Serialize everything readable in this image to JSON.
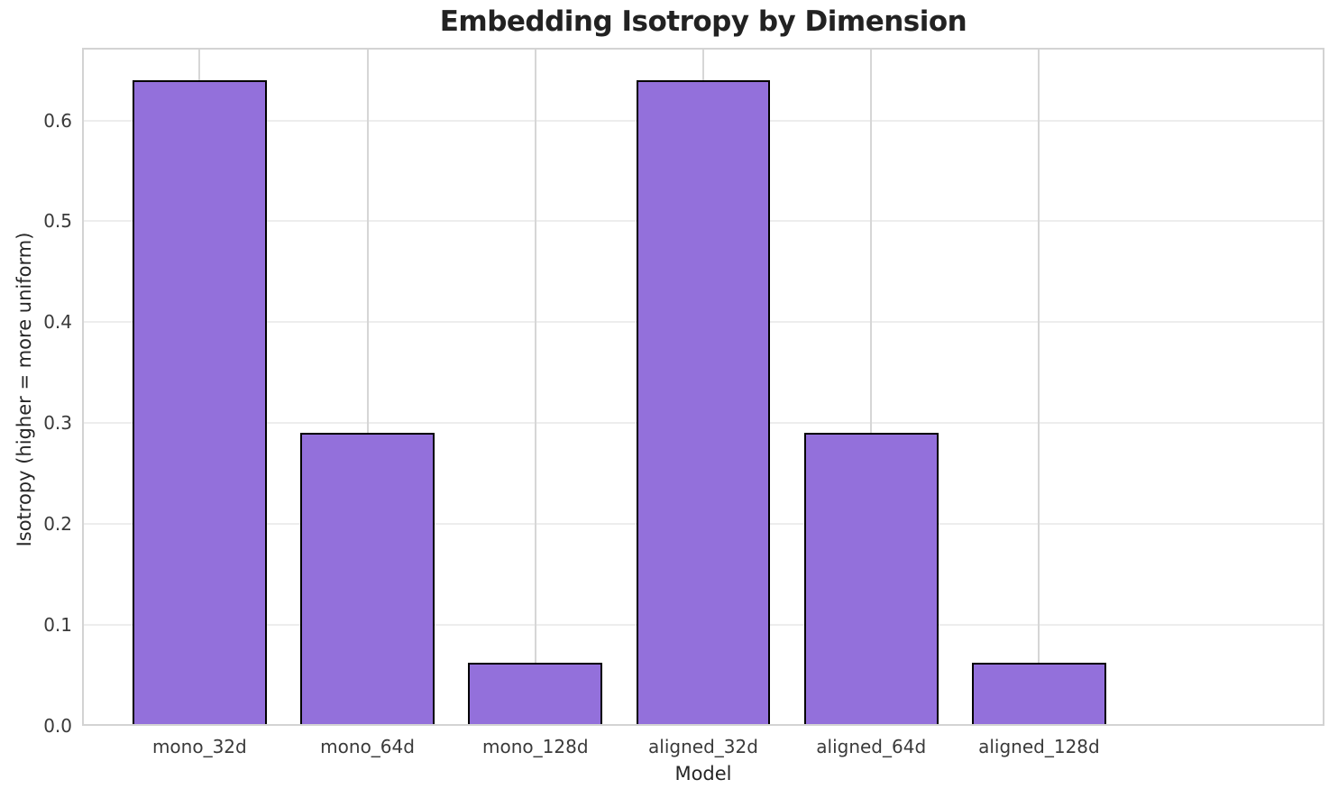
{
  "chart_data": {
    "type": "bar",
    "title": "Embedding Isotropy by Dimension",
    "xlabel": "Model",
    "ylabel": "Isotropy (higher = more uniform)",
    "categories": [
      "mono_32d",
      "mono_64d",
      "mono_128d",
      "aligned_32d",
      "aligned_64d",
      "aligned_128d"
    ],
    "values": [
      0.64,
      0.29,
      0.063,
      0.64,
      0.29,
      0.063
    ],
    "ytick_labels": [
      "0.0",
      "0.1",
      "0.2",
      "0.3",
      "0.4",
      "0.5",
      "0.6"
    ],
    "ylim": [
      0,
      0.672
    ],
    "grid": "on",
    "legend": "none",
    "bar_fill_color": "#9370DB",
    "bar_edge_color": "#000000"
  }
}
